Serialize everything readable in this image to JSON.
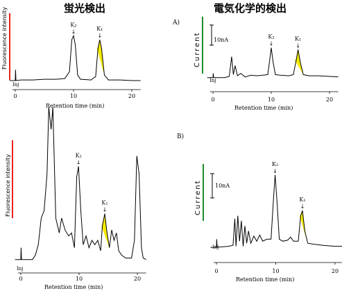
{
  "headings": {
    "left": "蛍光検出",
    "right": "電気化学的検出",
    "left_color": "#e8231e",
    "right_color": "#1f8a2a"
  },
  "panels": {
    "tl": {
      "ylabel": "Fluorescence intensity",
      "xlabel": "Retention time (min)",
      "inj": "Inj"
    },
    "bl": {
      "ylabel": "Fluorescence intensity",
      "xlabel": "Retention time (min)",
      "inj": "Inj"
    },
    "tr": {
      "label": "A)",
      "ylabel": "Current",
      "xlabel": "Retention time (min)",
      "inj": "Inj",
      "scale": "10nA"
    },
    "br": {
      "label": "B)",
      "ylabel": "Current",
      "xlabel": "Retention time (min)",
      "inj": "Inj",
      "scale": "10nA"
    }
  },
  "peak_labels": {
    "k2": "K₂",
    "k1": "K₁",
    "arrow": "↓"
  },
  "colors": {
    "highlight": "#f5ea00",
    "line": "#000000",
    "fluor_bar": "#e8231e",
    "ec_bar": "#1f8a2a"
  },
  "chart_data": [
    {
      "type": "line",
      "id": "tl",
      "xlabel": "Retention time (min)",
      "ylabel": "Fluorescence intensity",
      "xlim": [
        -1,
        22
      ],
      "ylim": [
        0,
        1
      ],
      "xticks": [
        0,
        10,
        20
      ],
      "trace": [
        [
          -1,
          0.02
        ],
        [
          0,
          0.02
        ],
        [
          0.05,
          0.18
        ],
        [
          0.12,
          0.02
        ],
        [
          1,
          0.03
        ],
        [
          3,
          0.03
        ],
        [
          5,
          0.04
        ],
        [
          7,
          0.04
        ],
        [
          8.5,
          0.05
        ],
        [
          9.3,
          0.15
        ],
        [
          9.7,
          0.62
        ],
        [
          10,
          0.68
        ],
        [
          10.3,
          0.55
        ],
        [
          10.7,
          0.1
        ],
        [
          11.2,
          0.04
        ],
        [
          13,
          0.03
        ],
        [
          13.8,
          0.08
        ],
        [
          14.2,
          0.5
        ],
        [
          14.5,
          0.62
        ],
        [
          14.8,
          0.5
        ],
        [
          15.3,
          0.1
        ],
        [
          16,
          0.03
        ],
        [
          18,
          0.03
        ],
        [
          20,
          0.02
        ],
        [
          21.5,
          0.02
        ]
      ],
      "highlight": [
        14.0,
        15.3
      ],
      "peaks": [
        {
          "name": "K₂",
          "x": 10
        },
        {
          "name": "K₁",
          "x": 14.5
        }
      ]
    },
    {
      "type": "line",
      "id": "bl",
      "xlabel": "Retention time (min)",
      "ylabel": "Fluorescence intensity",
      "xlim": [
        -1,
        22
      ],
      "ylim": [
        0,
        1
      ],
      "xticks": [
        0,
        10,
        20
      ],
      "trace": [
        [
          -1,
          0.02
        ],
        [
          0,
          0.02
        ],
        [
          0.05,
          0.1
        ],
        [
          0.12,
          0.02
        ],
        [
          2,
          0.02
        ],
        [
          2.5,
          0.05
        ],
        [
          3,
          0.12
        ],
        [
          3.5,
          0.3
        ],
        [
          4,
          0.35
        ],
        [
          4.5,
          0.6
        ],
        [
          4.8,
          1.05
        ],
        [
          5.2,
          0.9
        ],
        [
          5.5,
          1.05
        ],
        [
          6,
          0.3
        ],
        [
          6.6,
          0.2
        ],
        [
          7,
          0.3
        ],
        [
          7.6,
          0.22
        ],
        [
          8.2,
          0.18
        ],
        [
          8.7,
          0.2
        ],
        [
          9.2,
          0.1
        ],
        [
          9.6,
          0.58
        ],
        [
          9.9,
          0.65
        ],
        [
          10.3,
          0.35
        ],
        [
          10.7,
          0.12
        ],
        [
          11.2,
          0.18
        ],
        [
          11.7,
          0.1
        ],
        [
          12.2,
          0.15
        ],
        [
          12.7,
          0.12
        ],
        [
          13.2,
          0.15
        ],
        [
          13.7,
          0.08
        ],
        [
          14,
          0.25
        ],
        [
          14.4,
          0.33
        ],
        [
          14.8,
          0.2
        ],
        [
          15.2,
          0.1
        ],
        [
          15.6,
          0.22
        ],
        [
          16,
          0.15
        ],
        [
          16.4,
          0.2
        ],
        [
          16.8,
          0.08
        ],
        [
          17.3,
          0.05
        ],
        [
          18,
          0.03
        ],
        [
          19,
          0.03
        ],
        [
          19.5,
          0.15
        ],
        [
          19.9,
          0.72
        ],
        [
          20.3,
          0.6
        ],
        [
          20.7,
          0.1
        ],
        [
          21,
          0.03
        ],
        [
          21.5,
          0.02
        ]
      ],
      "highlight": [
        13.8,
        15.2
      ],
      "peaks": [
        {
          "name": "K₂",
          "x": 9.9
        },
        {
          "name": "K₁",
          "x": 14.4
        }
      ]
    },
    {
      "type": "line",
      "id": "tr",
      "xlabel": "Retention time (min)",
      "ylabel": "Current",
      "xlim": [
        -1,
        22
      ],
      "ylim": [
        0,
        1
      ],
      "xticks": [
        0,
        10,
        20
      ],
      "trace": [
        [
          -1,
          0.05
        ],
        [
          0,
          0.05
        ],
        [
          0.05,
          0.12
        ],
        [
          0.12,
          0.05
        ],
        [
          2,
          0.05
        ],
        [
          2.8,
          0.07
        ],
        [
          3.2,
          0.4
        ],
        [
          3.5,
          0.1
        ],
        [
          3.8,
          0.25
        ],
        [
          4.2,
          0.08
        ],
        [
          4.8,
          0.12
        ],
        [
          5.5,
          0.06
        ],
        [
          6.5,
          0.09
        ],
        [
          7.5,
          0.08
        ],
        [
          8.5,
          0.09
        ],
        [
          9.4,
          0.1
        ],
        [
          9.7,
          0.32
        ],
        [
          10,
          0.55
        ],
        [
          10.3,
          0.32
        ],
        [
          10.7,
          0.1
        ],
        [
          11.5,
          0.09
        ],
        [
          13,
          0.08
        ],
        [
          13.8,
          0.1
        ],
        [
          14.3,
          0.35
        ],
        [
          14.6,
          0.52
        ],
        [
          15,
          0.3
        ],
        [
          15.5,
          0.1
        ],
        [
          16.5,
          0.08
        ],
        [
          18,
          0.08
        ],
        [
          20,
          0.07
        ],
        [
          21.5,
          0.06
        ]
      ],
      "highlight": [
        14.0,
        15.5
      ],
      "peaks": [
        {
          "name": "K₂",
          "x": 10
        },
        {
          "name": "K₁",
          "x": 14.6
        }
      ]
    },
    {
      "type": "line",
      "id": "br",
      "xlabel": "Retention time (min)",
      "ylabel": "Current",
      "xlim": [
        -1,
        22
      ],
      "ylim": [
        0,
        1
      ],
      "xticks": [
        0,
        10,
        20
      ],
      "trace": [
        [
          -1,
          0.04
        ],
        [
          0,
          0.04
        ],
        [
          0.05,
          0.12
        ],
        [
          0.12,
          0.04
        ],
        [
          2,
          0.05
        ],
        [
          2.8,
          0.06
        ],
        [
          3.1,
          0.32
        ],
        [
          3.3,
          0.05
        ],
        [
          3.6,
          0.35
        ],
        [
          3.9,
          0.1
        ],
        [
          4.2,
          0.3
        ],
        [
          4.5,
          0.05
        ],
        [
          4.8,
          0.25
        ],
        [
          5.1,
          0.08
        ],
        [
          5.4,
          0.2
        ],
        [
          5.8,
          0.08
        ],
        [
          6.3,
          0.15
        ],
        [
          6.8,
          0.1
        ],
        [
          7.3,
          0.16
        ],
        [
          7.8,
          0.1
        ],
        [
          8.5,
          0.12
        ],
        [
          9.2,
          0.12
        ],
        [
          9.6,
          0.5
        ],
        [
          9.9,
          0.75
        ],
        [
          10.2,
          0.5
        ],
        [
          10.6,
          0.12
        ],
        [
          11.2,
          0.1
        ],
        [
          12,
          0.11
        ],
        [
          12.5,
          0.14
        ],
        [
          13,
          0.1
        ],
        [
          13.8,
          0.1
        ],
        [
          14.2,
          0.35
        ],
        [
          14.5,
          0.4
        ],
        [
          14.9,
          0.2
        ],
        [
          15.4,
          0.08
        ],
        [
          16.5,
          0.07
        ],
        [
          18,
          0.06
        ],
        [
          20,
          0.05
        ],
        [
          21.5,
          0.05
        ]
      ],
      "highlight": [
        14.0,
        15.4
      ],
      "peaks": [
        {
          "name": "K₂",
          "x": 9.9
        },
        {
          "name": "K₁",
          "x": 14.5
        }
      ]
    }
  ]
}
